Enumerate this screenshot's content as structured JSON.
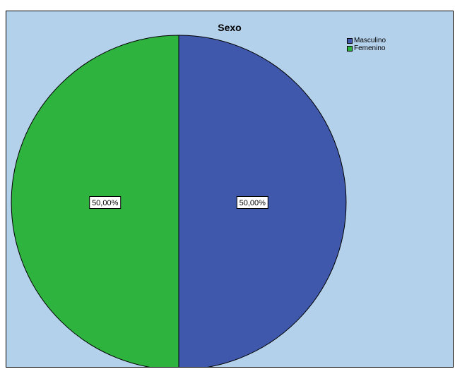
{
  "chart_data": {
    "type": "pie",
    "title": "Sexo",
    "legend_position": "top-right",
    "slices": [
      {
        "label": "Masculino",
        "value": 50.0,
        "data_label": "50,00%",
        "color": "#3f58ab"
      },
      {
        "label": "Femenino",
        "value": 50.0,
        "data_label": "50,00%",
        "color": "#2fb33f"
      }
    ]
  },
  "colors": {
    "background": "#b4d1ec",
    "outline": "#000000"
  }
}
